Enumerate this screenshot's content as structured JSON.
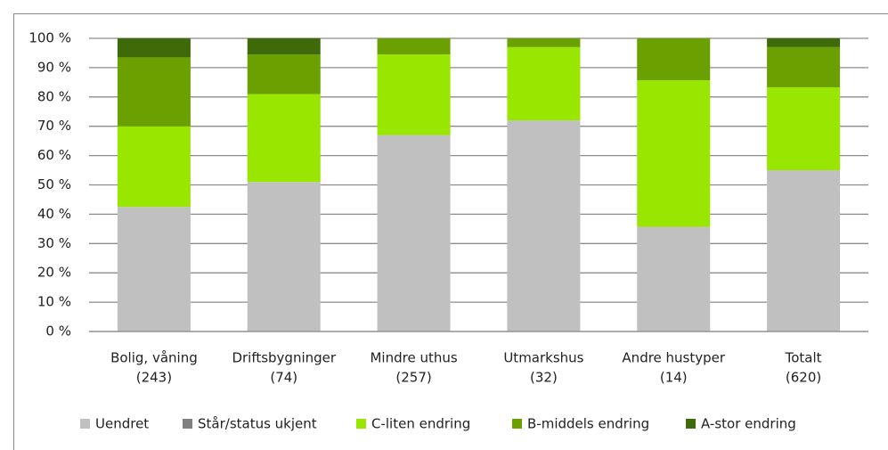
{
  "chart_data": {
    "type": "stacked-bar",
    "categories": [
      [
        "Bolig, våning",
        "(243)"
      ],
      [
        "Driftsbygninger",
        "(74)"
      ],
      [
        "Mindre uthus",
        "(257)"
      ],
      [
        "Utmarkshus",
        "(32)"
      ],
      [
        "Andre hustyper",
        "(14)"
      ],
      [
        "Totalt",
        "(620)"
      ]
    ],
    "series": [
      {
        "name": "Uendret",
        "color": "#c0c0c0",
        "values": [
          42.5,
          51,
          67,
          72,
          35.7,
          55
        ]
      },
      {
        "name": "Står/status ukjent",
        "color": "#808080",
        "values": [
          0,
          0,
          0,
          0,
          0,
          0
        ]
      },
      {
        "name": "C-liten endring",
        "color": "#99e600",
        "values": [
          27.5,
          30,
          27.5,
          25,
          50,
          28.3
        ]
      },
      {
        "name": "B-middels endring",
        "color": "#6aa100",
        "values": [
          23.5,
          13.5,
          5.5,
          3,
          14.3,
          13.7
        ]
      },
      {
        "name": "A-stor endring",
        "color": "#3f6a0a",
        "values": [
          6.5,
          5.5,
          0,
          0,
          0,
          3
        ]
      }
    ],
    "ylim": [
      0,
      100
    ],
    "yticks": [
      {
        "value": 0,
        "label": "0 %"
      },
      {
        "value": 10,
        "label": "10 %"
      },
      {
        "value": 20,
        "label": "20 %"
      },
      {
        "value": 30,
        "label": "30 %"
      },
      {
        "value": 40,
        "label": "40 %"
      },
      {
        "value": 50,
        "label": "50 %"
      },
      {
        "value": 60,
        "label": "60 %"
      },
      {
        "value": 70,
        "label": "70 %"
      },
      {
        "value": 80,
        "label": "80 %"
      },
      {
        "value": 90,
        "label": "90 %"
      },
      {
        "value": 100,
        "label": "100 %"
      }
    ],
    "grid": true,
    "legend": "bottom"
  }
}
